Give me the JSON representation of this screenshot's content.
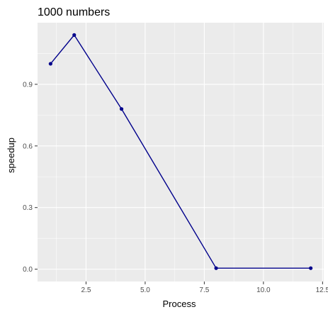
{
  "chart_data": {
    "type": "line",
    "title": "1000 numbers",
    "xlabel": "Process",
    "ylabel": "speedup",
    "x": [
      1,
      2,
      4,
      8,
      12
    ],
    "series": [
      {
        "values": [
          1.0,
          1.14,
          0.78,
          0.005,
          0.005
        ],
        "color": "#00008b"
      }
    ],
    "xlim": [
      0.45,
      12.55
    ],
    "ylim": [
      -0.06,
      1.2
    ],
    "xticks": [
      2.5,
      5.0,
      7.5,
      10.0,
      12.5
    ],
    "xtick_labels": [
      "2.5",
      "5.0",
      "7.5",
      "10.0",
      "12.5"
    ],
    "yticks": [
      0.0,
      0.3,
      0.6,
      0.9
    ],
    "ytick_labels": [
      "0.0",
      "0.3",
      "0.6",
      "0.9"
    ],
    "grid": true,
    "panel_background": "#ebebeb",
    "gridline_color": "#ffffff"
  }
}
